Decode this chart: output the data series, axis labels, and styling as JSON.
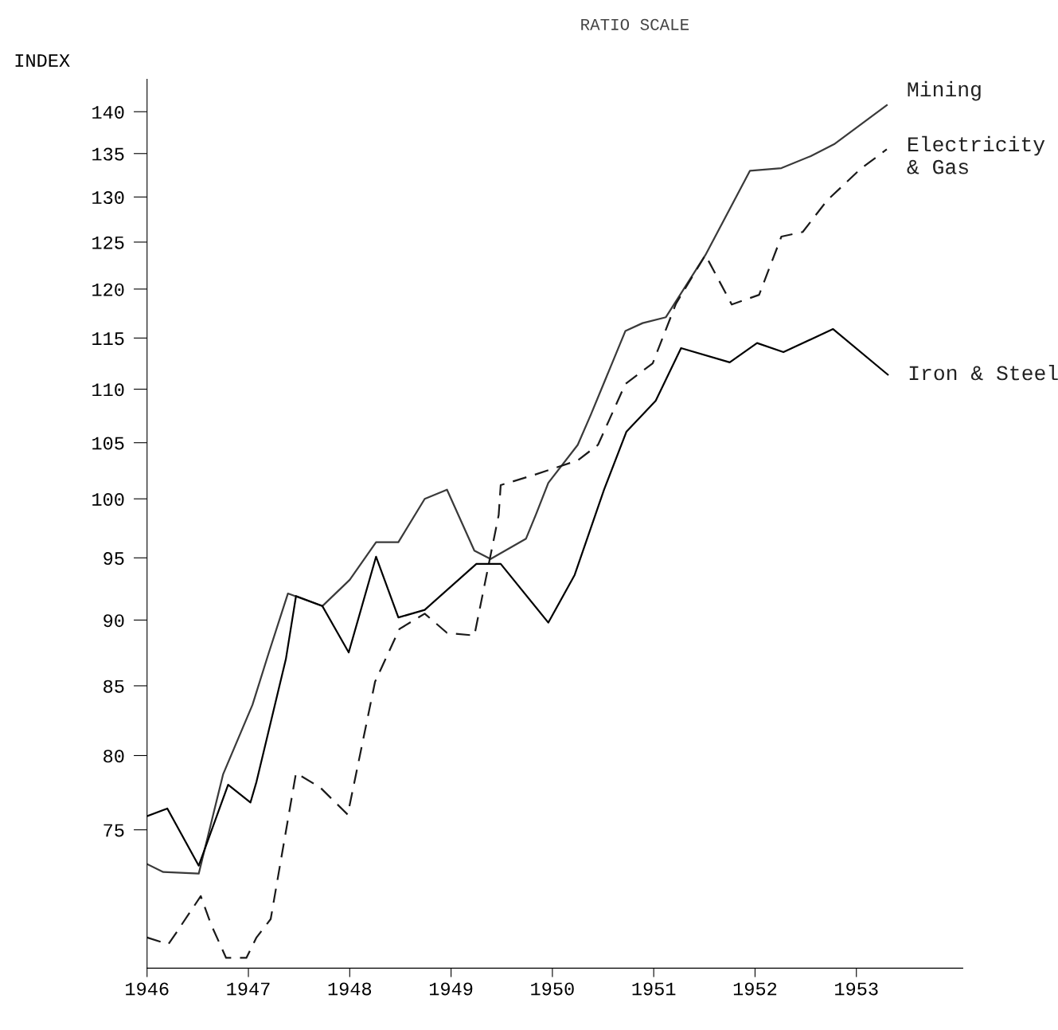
{
  "chart_data": {
    "type": "line",
    "title": "RATIO SCALE",
    "ylabel": "INDEX",
    "log": true,
    "ylim": [
      66.5,
      144
    ],
    "yticks": [
      75,
      80,
      85,
      90,
      95,
      100,
      105,
      110,
      115,
      120,
      125,
      130,
      135,
      140
    ],
    "xlim": [
      1946,
      1954.05
    ],
    "xticks": [
      1946,
      1947,
      1948,
      1949,
      1950,
      1951,
      1952,
      1953
    ],
    "grid": false,
    "legend": false,
    "marker": "none",
    "series": [
      {
        "name": "Mining",
        "color": "#3a3a3a",
        "line_style": "solid",
        "x": [
          1946.0,
          1946.16,
          1946.51,
          1946.75,
          1947.04,
          1947.19,
          1947.39,
          1947.73,
          1948.0,
          1948.26,
          1948.48,
          1948.74,
          1948.96,
          1949.23,
          1949.39,
          1949.74,
          1949.84,
          1949.96,
          1950.25,
          1950.38,
          1950.72,
          1950.89,
          1951.12,
          1951.51,
          1951.95,
          1952.26,
          1952.55,
          1952.78,
          1953.3
        ],
        "values": [
          72.8,
          72.3,
          72.2,
          78.7,
          83.6,
          87.2,
          92.1,
          91.1,
          93.2,
          96.3,
          96.3,
          100,
          100.8,
          95.6,
          94.9,
          96.6,
          98.7,
          101.4,
          104.8,
          107.6,
          115.7,
          116.5,
          117.1,
          123.6,
          133.0,
          133.3,
          134.7,
          136.1,
          140.8
        ]
      },
      {
        "name": "Electricity\n& Gas",
        "color": "#1a1a1a",
        "line_style": "dashed",
        "x": [
          1946.0,
          1946.21,
          1946.29,
          1946.53,
          1946.63,
          1946.78,
          1946.98,
          1947.08,
          1947.22,
          1947.47,
          1947.71,
          1947.98,
          1948.25,
          1948.49,
          1948.74,
          1948.96,
          1949.23,
          1949.47,
          1949.49,
          1949.82,
          1950.25,
          1950.45,
          1950.72,
          1950.99,
          1951.22,
          1951.51,
          1951.77,
          1952.04,
          1952.26,
          1952.47,
          1952.71,
          1953.04,
          1953.3
        ],
        "values": [
          68.3,
          67.9,
          68.6,
          70.8,
          69.1,
          67.1,
          67.1,
          68.3,
          69.4,
          78.8,
          77.8,
          76.0,
          85.3,
          89.3,
          90.5,
          89.0,
          88.8,
          98.6,
          101.2,
          102.1,
          103.4,
          104.8,
          110.5,
          112.5,
          118.5,
          123.6,
          118.4,
          119.4,
          125.6,
          126.1,
          129.6,
          133.2,
          135.5
        ]
      },
      {
        "name": "Iron & Steel",
        "color": "#000000",
        "line_style": "solid",
        "x": [
          1946.0,
          1946.2,
          1946.51,
          1946.8,
          1947.02,
          1947.08,
          1947.37,
          1947.47,
          1947.73,
          1947.99,
          1948.26,
          1948.48,
          1948.74,
          1949.25,
          1949.49,
          1949.96,
          1950.22,
          1950.51,
          1950.73,
          1951.02,
          1951.27,
          1951.75,
          1952.02,
          1952.28,
          1952.77,
          1953.31
        ],
        "values": [
          75.9,
          76.4,
          72.7,
          78.0,
          76.8,
          78.2,
          87.0,
          91.9,
          91.1,
          87.5,
          95.1,
          90.2,
          90.8,
          94.5,
          94.5,
          89.8,
          93.6,
          100.8,
          106.0,
          108.9,
          114.0,
          112.6,
          114.5,
          113.6,
          115.9,
          111.4
        ]
      }
    ]
  }
}
